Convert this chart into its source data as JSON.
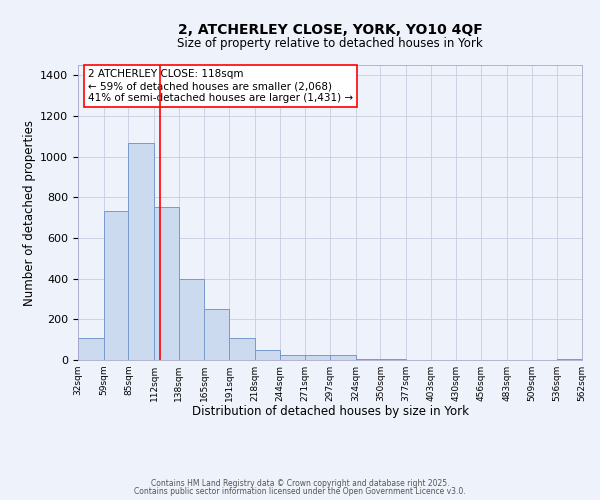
{
  "title_line1": "2, ATCHERLEY CLOSE, YORK, YO10 4QF",
  "title_line2": "Size of property relative to detached houses in York",
  "xlabel": "Distribution of detached houses by size in York",
  "ylabel": "Number of detached properties",
  "bar_color": "#ccdaf0",
  "bar_edge_color": "#7799cc",
  "bg_color": "#eef2fb",
  "grid_color": "#c8cce0",
  "vline_x": 118,
  "vline_color": "red",
  "annotation_line1": "2 ATCHERLEY CLOSE: 118sqm",
  "annotation_line2": "← 59% of detached houses are smaller (2,068)",
  "annotation_line3": "41% of semi-detached houses are larger (1,431) →",
  "annotation_box_color": "white",
  "annotation_box_edge": "red",
  "bin_edges": [
    32,
    59,
    85,
    112,
    138,
    165,
    191,
    218,
    244,
    271,
    297,
    324,
    350,
    377,
    403,
    430,
    456,
    483,
    509,
    536,
    562
  ],
  "bar_heights": [
    110,
    730,
    1065,
    750,
    400,
    250,
    110,
    50,
    25,
    25,
    25,
    5,
    5,
    0,
    0,
    0,
    0,
    0,
    0,
    5
  ],
  "ylim": [
    0,
    1450
  ],
  "yticks": [
    0,
    200,
    400,
    600,
    800,
    1000,
    1200,
    1400
  ],
  "footer_line1": "Contains HM Land Registry data © Crown copyright and database right 2025.",
  "footer_line2": "Contains public sector information licensed under the Open Government Licence v3.0."
}
